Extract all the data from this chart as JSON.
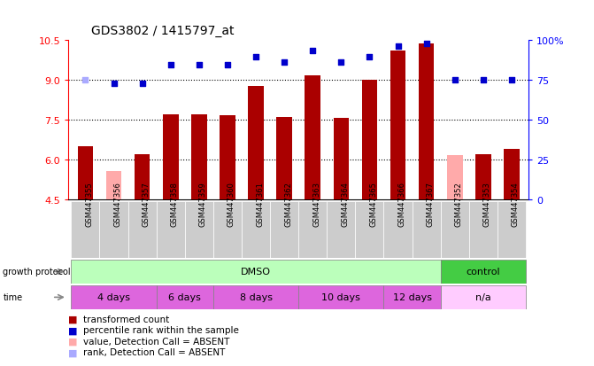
{
  "title": "GDS3802 / 1415797_at",
  "samples": [
    "GSM447355",
    "GSM447356",
    "GSM447357",
    "GSM447358",
    "GSM447359",
    "GSM447360",
    "GSM447361",
    "GSM447362",
    "GSM447363",
    "GSM447364",
    "GSM447365",
    "GSM447366",
    "GSM447367",
    "GSM447352",
    "GSM447353",
    "GSM447354"
  ],
  "bar_values": [
    6.5,
    null,
    6.2,
    7.7,
    7.7,
    7.65,
    8.75,
    7.6,
    9.15,
    7.55,
    9.0,
    10.1,
    10.35,
    null,
    6.2,
    6.4
  ],
  "absent_bar_values": [
    null,
    5.55,
    null,
    null,
    null,
    null,
    null,
    null,
    null,
    null,
    null,
    null,
    null,
    6.15,
    null,
    null
  ],
  "dot_values": [
    null,
    8.85,
    8.85,
    9.55,
    9.55,
    9.55,
    9.85,
    9.65,
    10.1,
    9.65,
    9.85,
    10.25,
    10.35,
    9.0,
    9.0,
    9.0
  ],
  "absent_dot_values": [
    9.0,
    null,
    null,
    null,
    null,
    null,
    null,
    null,
    null,
    null,
    null,
    null,
    null,
    null,
    null,
    null
  ],
  "ylim": [
    4.5,
    10.5
  ],
  "yticks_left": [
    4.5,
    6.0,
    7.5,
    9.0,
    10.5
  ],
  "yticks_right": [
    0,
    25,
    50,
    75,
    100
  ],
  "ytick_labels_right": [
    "0",
    "25",
    "50",
    "75",
    "100%"
  ],
  "hlines": [
    6.0,
    7.5,
    9.0
  ],
  "bar_color": "#aa0000",
  "absent_bar_color": "#ffaaaa",
  "dot_color": "#0000cc",
  "absent_dot_color": "#aaaaff",
  "bar_width": 0.55,
  "dmso_color": "#bbffbb",
  "control_color": "#44cc44",
  "time_color_alt": "#dd66dd",
  "time_color_na": "#ffccff",
  "sample_box_color": "#cccccc",
  "growth_label": "growth protocol",
  "time_label": "time",
  "time_boundaries": [
    [
      -0.5,
      2.5,
      "4 days"
    ],
    [
      2.5,
      4.5,
      "6 days"
    ],
    [
      4.5,
      7.5,
      "8 days"
    ],
    [
      7.5,
      10.5,
      "10 days"
    ],
    [
      10.5,
      12.5,
      "12 days"
    ],
    [
      12.5,
      15.5,
      "n/a"
    ]
  ],
  "legend_items": [
    {
      "label": "transformed count",
      "color": "#aa0000"
    },
    {
      "label": "percentile rank within the sample",
      "color": "#0000cc"
    },
    {
      "label": "value, Detection Call = ABSENT",
      "color": "#ffaaaa"
    },
    {
      "label": "rank, Detection Call = ABSENT",
      "color": "#aaaaff"
    }
  ]
}
